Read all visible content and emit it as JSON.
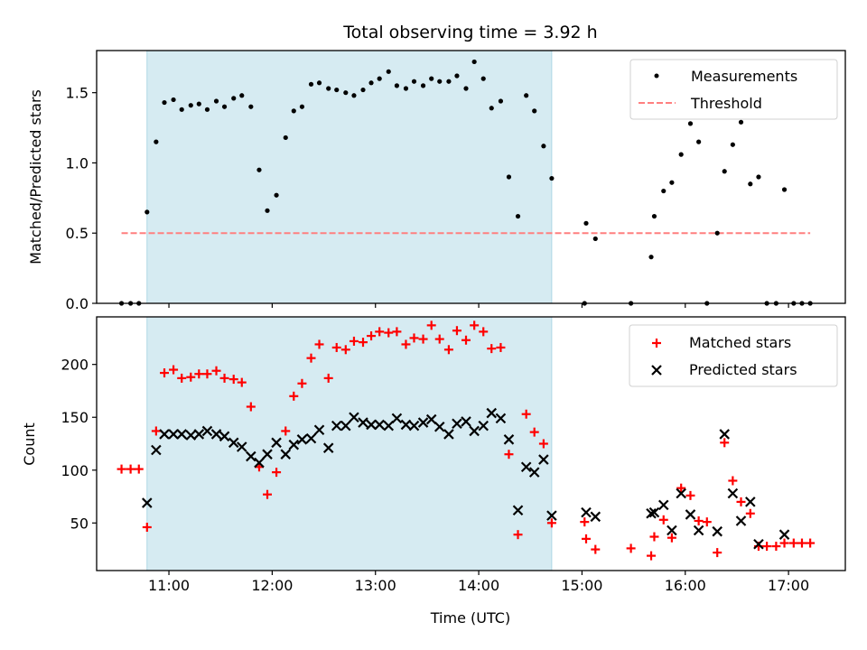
{
  "chart_data": [
    {
      "type": "scatter",
      "title": "Total observing time = 3.92 h",
      "xlabel": "",
      "ylabel": "Matched/Predicted stars",
      "xlim": [
        10.3,
        17.55
      ],
      "ylim": [
        0,
        1.8
      ],
      "x_ticks": [
        {
          "value": 11,
          "label": "11:00"
        },
        {
          "value": 12,
          "label": "12:00"
        },
        {
          "value": 13,
          "label": "13:00"
        },
        {
          "value": 14,
          "label": "14:00"
        },
        {
          "value": 15,
          "label": "15:00"
        },
        {
          "value": 16,
          "label": "16:00"
        },
        {
          "value": 17,
          "label": "17:00"
        }
      ],
      "x_ticklabels_visible": false,
      "y_ticks": [
        {
          "value": 0.0,
          "label": "0.0"
        },
        {
          "value": 0.5,
          "label": "0.5"
        },
        {
          "value": 1.0,
          "label": "1.0"
        },
        {
          "value": 1.5,
          "label": "1.5"
        }
      ],
      "grid": false,
      "shaded_span": {
        "x0": 10.788,
        "x1": 14.707,
        "color": "#add8e6",
        "alpha": 0.5
      },
      "legend": {
        "placement": "top-right",
        "entries": [
          {
            "label": "Measurements",
            "marker": "dot",
            "color": "#000000"
          },
          {
            "label": "Threshold",
            "marker": "dashed-line",
            "color": "#ff7f7f"
          }
        ]
      },
      "threshold": {
        "name": "Threshold",
        "y": 0.5,
        "x0": 10.541,
        "x1": 17.21,
        "color": "#ff7f7f"
      },
      "series": [
        {
          "name": "Measurements",
          "color": "#000000",
          "marker": "dot",
          "x": [
            10.541,
            10.629,
            10.709,
            10.788,
            10.876,
            10.956,
            11.044,
            11.124,
            11.212,
            11.291,
            11.371,
            11.459,
            11.538,
            11.627,
            11.706,
            11.794,
            11.874,
            11.953,
            12.041,
            12.13,
            12.209,
            12.289,
            12.377,
            12.456,
            12.545,
            12.624,
            12.712,
            12.792,
            12.88,
            12.959,
            13.039,
            13.127,
            13.207,
            13.295,
            13.374,
            13.462,
            13.542,
            13.621,
            13.71,
            13.789,
            13.877,
            13.957,
            14.045,
            14.124,
            14.213,
            14.292,
            14.38,
            14.46,
            14.539,
            14.628,
            14.707,
            15.025,
            15.04,
            15.13,
            15.474,
            15.67,
            15.7,
            15.79,
            15.87,
            15.96,
            16.05,
            16.13,
            16.21,
            16.31,
            16.38,
            16.46,
            16.54,
            16.63,
            16.71,
            16.79,
            16.88,
            16.96,
            17.05,
            17.13,
            17.21
          ],
          "y": [
            0,
            0,
            0,
            0.65,
            1.15,
            1.43,
            1.45,
            1.38,
            1.41,
            1.42,
            1.38,
            1.44,
            1.4,
            1.46,
            1.48,
            1.4,
            0.95,
            0.66,
            0.77,
            1.18,
            1.37,
            1.4,
            1.56,
            1.57,
            1.53,
            1.52,
            1.5,
            1.48,
            1.52,
            1.57,
            1.6,
            1.65,
            1.55,
            1.53,
            1.58,
            1.55,
            1.6,
            1.58,
            1.58,
            1.62,
            1.53,
            1.72,
            1.6,
            1.39,
            1.44,
            0.9,
            0.62,
            1.48,
            1.37,
            1.12,
            0.89,
            0,
            0.57,
            0.46,
            0,
            0.33,
            0.62,
            0.8,
            0.86,
            1.06,
            1.28,
            1.15,
            0,
            0.5,
            0.94,
            1.13,
            1.29,
            0.85,
            0.9,
            0,
            0,
            0.81,
            0,
            0,
            0
          ]
        }
      ]
    },
    {
      "type": "scatter",
      "title": "",
      "xlabel": "Time (UTC)",
      "ylabel": "Count",
      "xlim": [
        10.3,
        17.55
      ],
      "ylim": [
        5,
        245
      ],
      "x_ticks": [
        {
          "value": 11,
          "label": "11:00"
        },
        {
          "value": 12,
          "label": "12:00"
        },
        {
          "value": 13,
          "label": "13:00"
        },
        {
          "value": 14,
          "label": "14:00"
        },
        {
          "value": 15,
          "label": "15:00"
        },
        {
          "value": 16,
          "label": "16:00"
        },
        {
          "value": 17,
          "label": "17:00"
        }
      ],
      "y_ticks": [
        {
          "value": 50,
          "label": "50"
        },
        {
          "value": 100,
          "label": "100"
        },
        {
          "value": 150,
          "label": "150"
        },
        {
          "value": 200,
          "label": "200"
        }
      ],
      "grid": false,
      "shaded_span": {
        "x0": 10.788,
        "x1": 14.707,
        "color": "#add8e6",
        "alpha": 0.5
      },
      "legend": {
        "placement": "top-right",
        "entries": [
          {
            "label": "Matched stars",
            "marker": "plus",
            "color": "#ff0000"
          },
          {
            "label": "Predicted stars",
            "marker": "x",
            "color": "#000000"
          }
        ]
      },
      "series": [
        {
          "name": "Matched stars",
          "color": "#ff0000",
          "marker": "plus",
          "x": [
            10.541,
            10.629,
            10.709,
            10.788,
            10.876,
            10.956,
            11.044,
            11.124,
            11.212,
            11.291,
            11.371,
            11.459,
            11.538,
            11.627,
            11.706,
            11.794,
            11.874,
            11.953,
            12.041,
            12.13,
            12.209,
            12.289,
            12.377,
            12.456,
            12.545,
            12.624,
            12.712,
            12.792,
            12.88,
            12.959,
            13.039,
            13.127,
            13.207,
            13.295,
            13.374,
            13.462,
            13.542,
            13.621,
            13.71,
            13.789,
            13.877,
            13.957,
            14.045,
            14.124,
            14.213,
            14.292,
            14.38,
            14.46,
            14.539,
            14.628,
            14.707,
            15.025,
            15.04,
            15.13,
            15.474,
            15.67,
            15.7,
            15.79,
            15.87,
            15.96,
            16.05,
            16.13,
            16.21,
            16.31,
            16.38,
            16.46,
            16.54,
            16.63,
            16.71,
            16.79,
            16.88,
            16.96,
            17.05,
            17.13,
            17.21
          ],
          "y": [
            101,
            101,
            101,
            46,
            137,
            192,
            195,
            187,
            188,
            191,
            191,
            194,
            187,
            186,
            183,
            160,
            103,
            77,
            98,
            137,
            170,
            182,
            206,
            219,
            187,
            216,
            214,
            222,
            221,
            227,
            231,
            230,
            231,
            219,
            225,
            224,
            237,
            224,
            214,
            232,
            223,
            237,
            231,
            215,
            216,
            115,
            39,
            153,
            136,
            125,
            50,
            51,
            35,
            25,
            26,
            19,
            37,
            53,
            36,
            83,
            76,
            52,
            51,
            22,
            126,
            90,
            70,
            59,
            28,
            28,
            28,
            31,
            31,
            31,
            31
          ]
        },
        {
          "name": "Predicted stars",
          "color": "#000000",
          "marker": "x",
          "x": [
            10.788,
            10.876,
            10.956,
            11.044,
            11.124,
            11.212,
            11.291,
            11.371,
            11.459,
            11.538,
            11.627,
            11.706,
            11.794,
            11.874,
            11.953,
            12.041,
            12.13,
            12.209,
            12.289,
            12.377,
            12.456,
            12.545,
            12.624,
            12.712,
            12.792,
            12.88,
            12.959,
            13.039,
            13.127,
            13.207,
            13.295,
            13.374,
            13.462,
            13.542,
            13.621,
            13.71,
            13.789,
            13.877,
            13.957,
            14.045,
            14.124,
            14.213,
            14.292,
            14.38,
            14.46,
            14.539,
            14.628,
            14.707,
            15.04,
            15.13,
            15.67,
            15.7,
            15.79,
            15.87,
            15.96,
            16.05,
            16.13,
            16.31,
            16.38,
            16.46,
            16.54,
            16.63,
            16.71,
            16.96
          ],
          "y": [
            69,
            119,
            134,
            134,
            134,
            133,
            134,
            137,
            134,
            132,
            126,
            122,
            113,
            107,
            115,
            126,
            115,
            124,
            129,
            130,
            138,
            121,
            142,
            142,
            150,
            145,
            143,
            143,
            142,
            149,
            143,
            142,
            145,
            148,
            141,
            134,
            144,
            146,
            137,
            142,
            154,
            149,
            129,
            62,
            103,
            98,
            110,
            57,
            60,
            56,
            59,
            60,
            67,
            43,
            78,
            58,
            43,
            42,
            134,
            78,
            52,
            70,
            30,
            39
          ]
        }
      ]
    }
  ]
}
